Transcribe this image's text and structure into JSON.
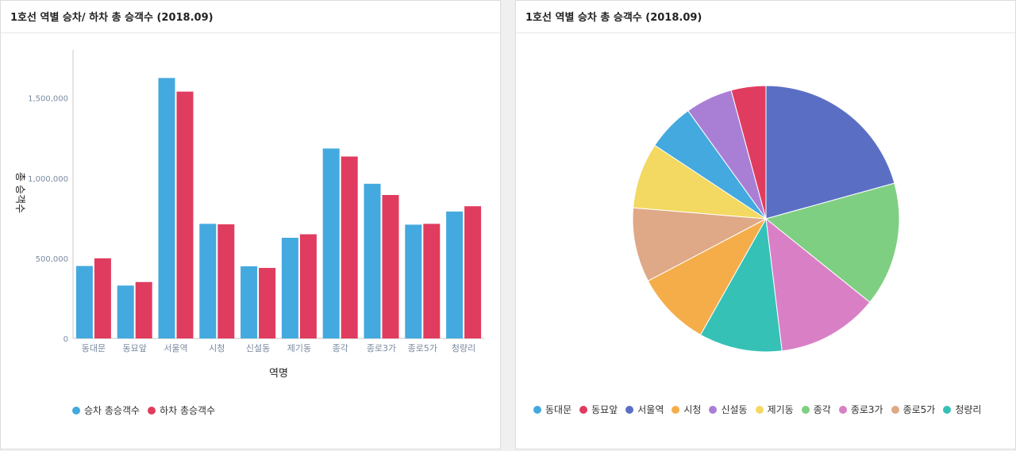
{
  "bar_panel": {
    "title": "1호선 역별 승차/ 하차 총 승객수 (2018.09)"
  },
  "pie_panel": {
    "title": "1호선 역별 승차 총 승객수 (2018.09)"
  },
  "chart_data": [
    {
      "type": "bar",
      "title": "1호선 역별 승차/ 하차 총 승객수 (2018.09)",
      "xlabel": "역명",
      "ylabel": "총 승객수",
      "ylim": [
        0,
        1800000
      ],
      "yticks": [
        0,
        500000,
        1000000,
        1500000
      ],
      "ytick_labels": [
        "0",
        "500,000",
        "1,000,000",
        "1,500,000"
      ],
      "grid": false,
      "legend_position": "bottom-left",
      "categories": [
        "동대문",
        "동묘앞",
        "서울역",
        "시청",
        "신설동",
        "제기동",
        "종각",
        "종로3가",
        "종로5가",
        "청량리"
      ],
      "series": [
        {
          "name": "승차 총승객수",
          "color": "#44a9de",
          "values": [
            452000,
            330000,
            1625000,
            715000,
            450000,
            628000,
            1185000,
            965000,
            710000,
            792000
          ]
        },
        {
          "name": "하차 총승객수",
          "color": "#e03c5f",
          "values": [
            500000,
            352000,
            1540000,
            712000,
            440000,
            650000,
            1135000,
            895000,
            715000,
            825000
          ]
        }
      ]
    },
    {
      "type": "pie",
      "title": "1호선 역별 승차 총 승객수 (2018.09)",
      "legend_position": "bottom-left",
      "labels": [
        "동대문",
        "동묘앞",
        "서울역",
        "시청",
        "신설동",
        "제기동",
        "종각",
        "종로3가",
        "종로5가",
        "청량리"
      ],
      "values": [
        452000,
        330000,
        1625000,
        715000,
        450000,
        628000,
        1185000,
        965000,
        710000,
        792000
      ],
      "colors": [
        "#44a9de",
        "#e03c5f",
        "#5a6fc4",
        "#f5ad4a",
        "#a97fd6",
        "#f3d961",
        "#7fcf82",
        "#d97fc6",
        "#dfa886",
        "#35c1b6"
      ],
      "draw_order": [
        2,
        6,
        7,
        9,
        3,
        8,
        5,
        0,
        4,
        1
      ]
    }
  ]
}
